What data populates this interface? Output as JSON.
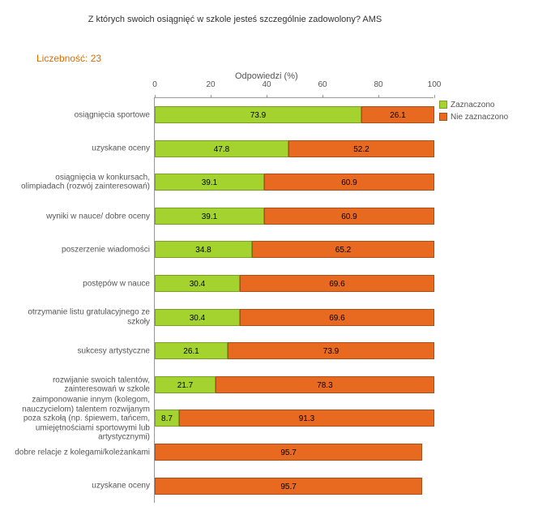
{
  "title": "Z których swoich osiągnięć w szkole jesteś szczególnie zadowolony? AMS",
  "subtitle_prefix": "Liczebność: ",
  "subtitle_value": "23",
  "subtitle_color": "#d96d00",
  "axis_title": "Odpowiedzi (%)",
  "xlim": [
    0,
    100
  ],
  "xtick_step": 20,
  "xticks": [
    "0",
    "20",
    "40",
    "60",
    "80",
    "100"
  ],
  "colors": {
    "marked": "#a4d330",
    "unmarked": "#e86a20",
    "grid": "#999999",
    "background": "#ffffff"
  },
  "legend": {
    "marked": "Zaznaczono",
    "unmarked": "Nie zaznaczono"
  },
  "rows": [
    {
      "label": "osiągnięcia sportowe",
      "marked": 73.9,
      "unmarked": 26.1
    },
    {
      "label": "uzyskane oceny",
      "marked": 47.8,
      "unmarked": 52.2
    },
    {
      "label": "osiągnięcia w konkursach, olimpiadach (rozwój zainteresowań)",
      "marked": 39.1,
      "unmarked": 60.9
    },
    {
      "label": "wyniki w nauce/ dobre oceny",
      "marked": 39.1,
      "unmarked": 60.9
    },
    {
      "label": "poszerzenie wiadomości",
      "marked": 34.8,
      "unmarked": 65.2
    },
    {
      "label": "postępów w nauce",
      "marked": 30.4,
      "unmarked": 69.6
    },
    {
      "label": "otrzymanie listu gratulacyjnego ze szkoły",
      "marked": 30.4,
      "unmarked": 69.6
    },
    {
      "label": "sukcesy artystyczne",
      "marked": 26.1,
      "unmarked": 73.9
    },
    {
      "label": "rozwijanie swoich talentów, zainteresowań w szkole",
      "marked": 21.7,
      "unmarked": 78.3
    },
    {
      "label": "zaimponowanie innym (kolegom, nauczycielom) talentem rozwijanym poza szkołą (np. śpiewem, tańcem, umiejętnościami sportowymi lub artystycznymi)",
      "marked": 8.7,
      "unmarked": 91.3
    },
    {
      "label": "dobre relacje z kolegami/koleżankami",
      "marked": null,
      "unmarked": 95.7
    },
    {
      "label": "uzyskane oceny",
      "marked": null,
      "unmarked": 95.7
    }
  ]
}
